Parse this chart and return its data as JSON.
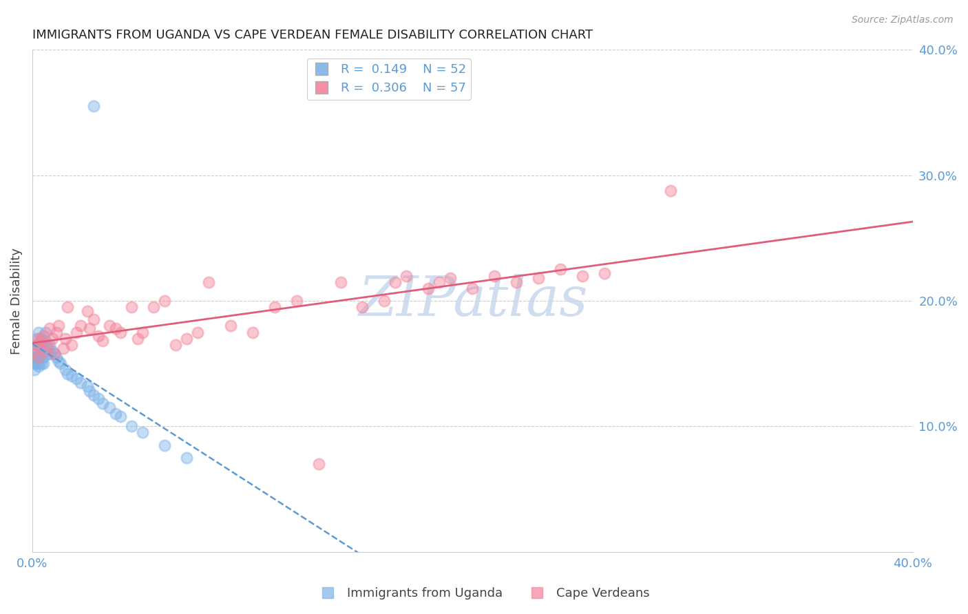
{
  "title": "IMMIGRANTS FROM UGANDA VS CAPE VERDEAN FEMALE DISABILITY CORRELATION CHART",
  "source": "Source: ZipAtlas.com",
  "ylabel": "Female Disability",
  "legend_label1": "Immigrants from Uganda",
  "legend_label2": "Cape Verdeans",
  "R1": "0.149",
  "N1": "52",
  "R2": "0.306",
  "N2": "57",
  "color1": "#7EB3E8",
  "color2": "#F4839A",
  "trend1_color": "#5B9BD5",
  "trend2_color": "#E05C7A",
  "watermark": "ZIPatlas",
  "watermark_color": "#C8D8EC",
  "xlim": [
    0,
    0.4
  ],
  "ylim": [
    0,
    0.4
  ],
  "background_color": "#FFFFFF",
  "grid_color": "#CCCCCC",
  "axis_label_color": "#5B9BD5",
  "uganda_x": [
    0.001,
    0.001,
    0.001,
    0.002,
    0.002,
    0.002,
    0.002,
    0.002,
    0.003,
    0.003,
    0.003,
    0.003,
    0.003,
    0.003,
    0.004,
    0.004,
    0.004,
    0.004,
    0.004,
    0.005,
    0.005,
    0.005,
    0.005,
    0.006,
    0.006,
    0.007,
    0.007,
    0.008,
    0.008,
    0.009,
    0.01,
    0.011,
    0.012,
    0.013,
    0.015,
    0.016,
    0.018,
    0.02,
    0.022,
    0.025,
    0.026,
    0.028,
    0.03,
    0.032,
    0.035,
    0.038,
    0.04,
    0.045,
    0.05,
    0.06,
    0.07,
    0.028
  ],
  "uganda_y": [
    0.155,
    0.15,
    0.145,
    0.17,
    0.165,
    0.16,
    0.155,
    0.15,
    0.175,
    0.165,
    0.16,
    0.155,
    0.15,
    0.148,
    0.17,
    0.165,
    0.16,
    0.155,
    0.15,
    0.165,
    0.16,
    0.155,
    0.15,
    0.175,
    0.168,
    0.162,
    0.158,
    0.165,
    0.158,
    0.16,
    0.158,
    0.155,
    0.152,
    0.15,
    0.145,
    0.142,
    0.14,
    0.138,
    0.135,
    0.132,
    0.128,
    0.125,
    0.122,
    0.118,
    0.115,
    0.11,
    0.108,
    0.1,
    0.095,
    0.085,
    0.075,
    0.355
  ],
  "capeverde_x": [
    0.001,
    0.002,
    0.003,
    0.003,
    0.004,
    0.005,
    0.006,
    0.007,
    0.008,
    0.009,
    0.01,
    0.011,
    0.012,
    0.014,
    0.015,
    0.016,
    0.018,
    0.02,
    0.022,
    0.025,
    0.026,
    0.028,
    0.03,
    0.032,
    0.035,
    0.038,
    0.04,
    0.045,
    0.048,
    0.05,
    0.055,
    0.06,
    0.065,
    0.07,
    0.075,
    0.08,
    0.09,
    0.1,
    0.11,
    0.12,
    0.13,
    0.14,
    0.15,
    0.16,
    0.165,
    0.17,
    0.18,
    0.185,
    0.19,
    0.2,
    0.21,
    0.22,
    0.23,
    0.24,
    0.25,
    0.26,
    0.29
  ],
  "capeverde_y": [
    0.16,
    0.165,
    0.17,
    0.155,
    0.168,
    0.172,
    0.16,
    0.165,
    0.178,
    0.17,
    0.158,
    0.175,
    0.18,
    0.162,
    0.17,
    0.195,
    0.165,
    0.175,
    0.18,
    0.192,
    0.178,
    0.185,
    0.172,
    0.168,
    0.18,
    0.178,
    0.175,
    0.195,
    0.17,
    0.175,
    0.195,
    0.2,
    0.165,
    0.17,
    0.175,
    0.215,
    0.18,
    0.175,
    0.195,
    0.2,
    0.07,
    0.215,
    0.195,
    0.2,
    0.215,
    0.22,
    0.21,
    0.215,
    0.218,
    0.21,
    0.22,
    0.215,
    0.218,
    0.225,
    0.22,
    0.222,
    0.288
  ]
}
